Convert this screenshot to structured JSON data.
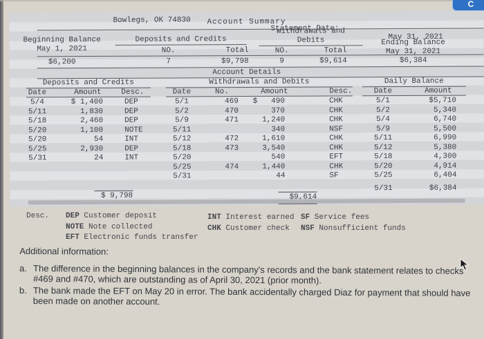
{
  "page": {
    "top_button_label": "C"
  },
  "statement": {
    "clipped_line": {
      "left": "Bowlegs, OK 74830",
      "middle": "Statement Date:",
      "right": "May 31, 2021"
    },
    "title": "Account Summary",
    "summary": {
      "beginning": {
        "label": "Beginning Balance",
        "date": "May 1, 2021",
        "amount": "$6,200"
      },
      "deposits": {
        "label": "Deposits and Credits",
        "no_label": "NO.",
        "total_label": "Total",
        "no_value": "7",
        "total_value": "$9,798"
      },
      "withdrawals": {
        "label_line1": "Withdrawals and",
        "label_line2": "Debits",
        "no_label": "NO.",
        "total_label": "Total",
        "no_value": "9",
        "total_value": "$9,614"
      },
      "ending": {
        "label": "Ending Balance",
        "date": "May 31, 2021",
        "amount": "$6,384"
      }
    },
    "details": {
      "title": "Account Details",
      "deposits": {
        "title": "Deposits and Credits",
        "headers": {
          "date": "Date",
          "amount": "Amount",
          "desc": "Desc."
        },
        "rows": [
          {
            "date": "5/4",
            "amount": "$ 1,400",
            "desc": "DEP"
          },
          {
            "date": "5/11",
            "amount": "1,830",
            "desc": "DEP"
          },
          {
            "date": "5/18",
            "amount": "2,460",
            "desc": "DEP"
          },
          {
            "date": "5/20",
            "amount": "1,100",
            "desc": "NOTE"
          },
          {
            "date": "5/20",
            "amount": "54",
            "desc": "INT"
          },
          {
            "date": "5/25",
            "amount": "2,930",
            "desc": "DEP"
          },
          {
            "date": "5/31",
            "amount": "24",
            "desc": "INT"
          }
        ],
        "total": "$ 9,798"
      },
      "withdrawals": {
        "title": "Withdrawals and Debits",
        "headers": {
          "date": "Date",
          "no": "No.",
          "amount": "Amount",
          "desc": "Desc."
        },
        "rows": [
          {
            "date": "5/1",
            "no": "469",
            "amount": "$   490",
            "desc": "CHK"
          },
          {
            "date": "5/2",
            "no": "470",
            "amount": "370",
            "desc": "CHK"
          },
          {
            "date": "5/9",
            "no": "471",
            "amount": "1,240",
            "desc": "CHK"
          },
          {
            "date": "5/11",
            "no": "",
            "amount": "340",
            "desc": "NSF"
          },
          {
            "date": "5/12",
            "no": "472",
            "amount": "1,610",
            "desc": "CHK"
          },
          {
            "date": "5/18",
            "no": "473",
            "amount": "3,540",
            "desc": "CHK"
          },
          {
            "date": "5/20",
            "no": "",
            "amount": "540",
            "desc": "EFT"
          },
          {
            "date": "5/25",
            "no": "474",
            "amount": "1,440",
            "desc": "CHK"
          },
          {
            "date": "5/31",
            "no": "",
            "amount": "44",
            "desc": "SF"
          }
        ],
        "total": "$9,614"
      },
      "daily_balance": {
        "title": "Daily Balance",
        "headers": {
          "date": "Date",
          "amount": "Amount"
        },
        "rows": [
          {
            "date": "5/1",
            "amount": "$5,710"
          },
          {
            "date": "5/2",
            "amount": "5,340"
          },
          {
            "date": "5/4",
            "amount": "6,740"
          },
          {
            "date": "5/9",
            "amount": "5,500"
          },
          {
            "date": "5/11",
            "amount": "6,990"
          },
          {
            "date": "5/12",
            "amount": "5,380"
          },
          {
            "date": "5/18",
            "amount": "4,300"
          },
          {
            "date": "5/20",
            "amount": "4,914"
          },
          {
            "date": "5/25",
            "amount": "6,404"
          }
        ],
        "final_row": {
          "date": "5/31",
          "amount": "$6,384"
        }
      }
    }
  },
  "legend": {
    "label": "Desc.",
    "columns": [
      [
        {
          "code": "DEP",
          "text": "Customer deposit"
        },
        {
          "code": "NOTE",
          "text": "Note collected"
        },
        {
          "code": "EFT",
          "text": "Electronic funds transfer"
        }
      ],
      [
        {
          "code": "INT",
          "text": "Interest earned"
        },
        {
          "code": "CHK",
          "text": "Customer check"
        }
      ],
      [
        {
          "code": "SF",
          "text": "Service fees"
        },
        {
          "code": "NSF",
          "text": "Nonsufficient funds"
        }
      ]
    ]
  },
  "additional_info": {
    "title": "Additional information:",
    "items": [
      {
        "marker": "a.",
        "text": "The difference in the beginning balances in the company's records and the bank statement relates to checks #469 and #470, which are outstanding as of April 30, 2021 (prior month)."
      },
      {
        "marker": "b.",
        "text": "The bank made the EFT on May 20 in error. The bank accidentally charged Diaz for payment that should have been made on another account."
      }
    ]
  },
  "colors": {
    "page_bg": "#d8d4cb",
    "statement_stripe_dark": "#d3d5d9",
    "statement_stripe_light": "#e1e2e5",
    "accent_blue": "#2f72c5"
  }
}
